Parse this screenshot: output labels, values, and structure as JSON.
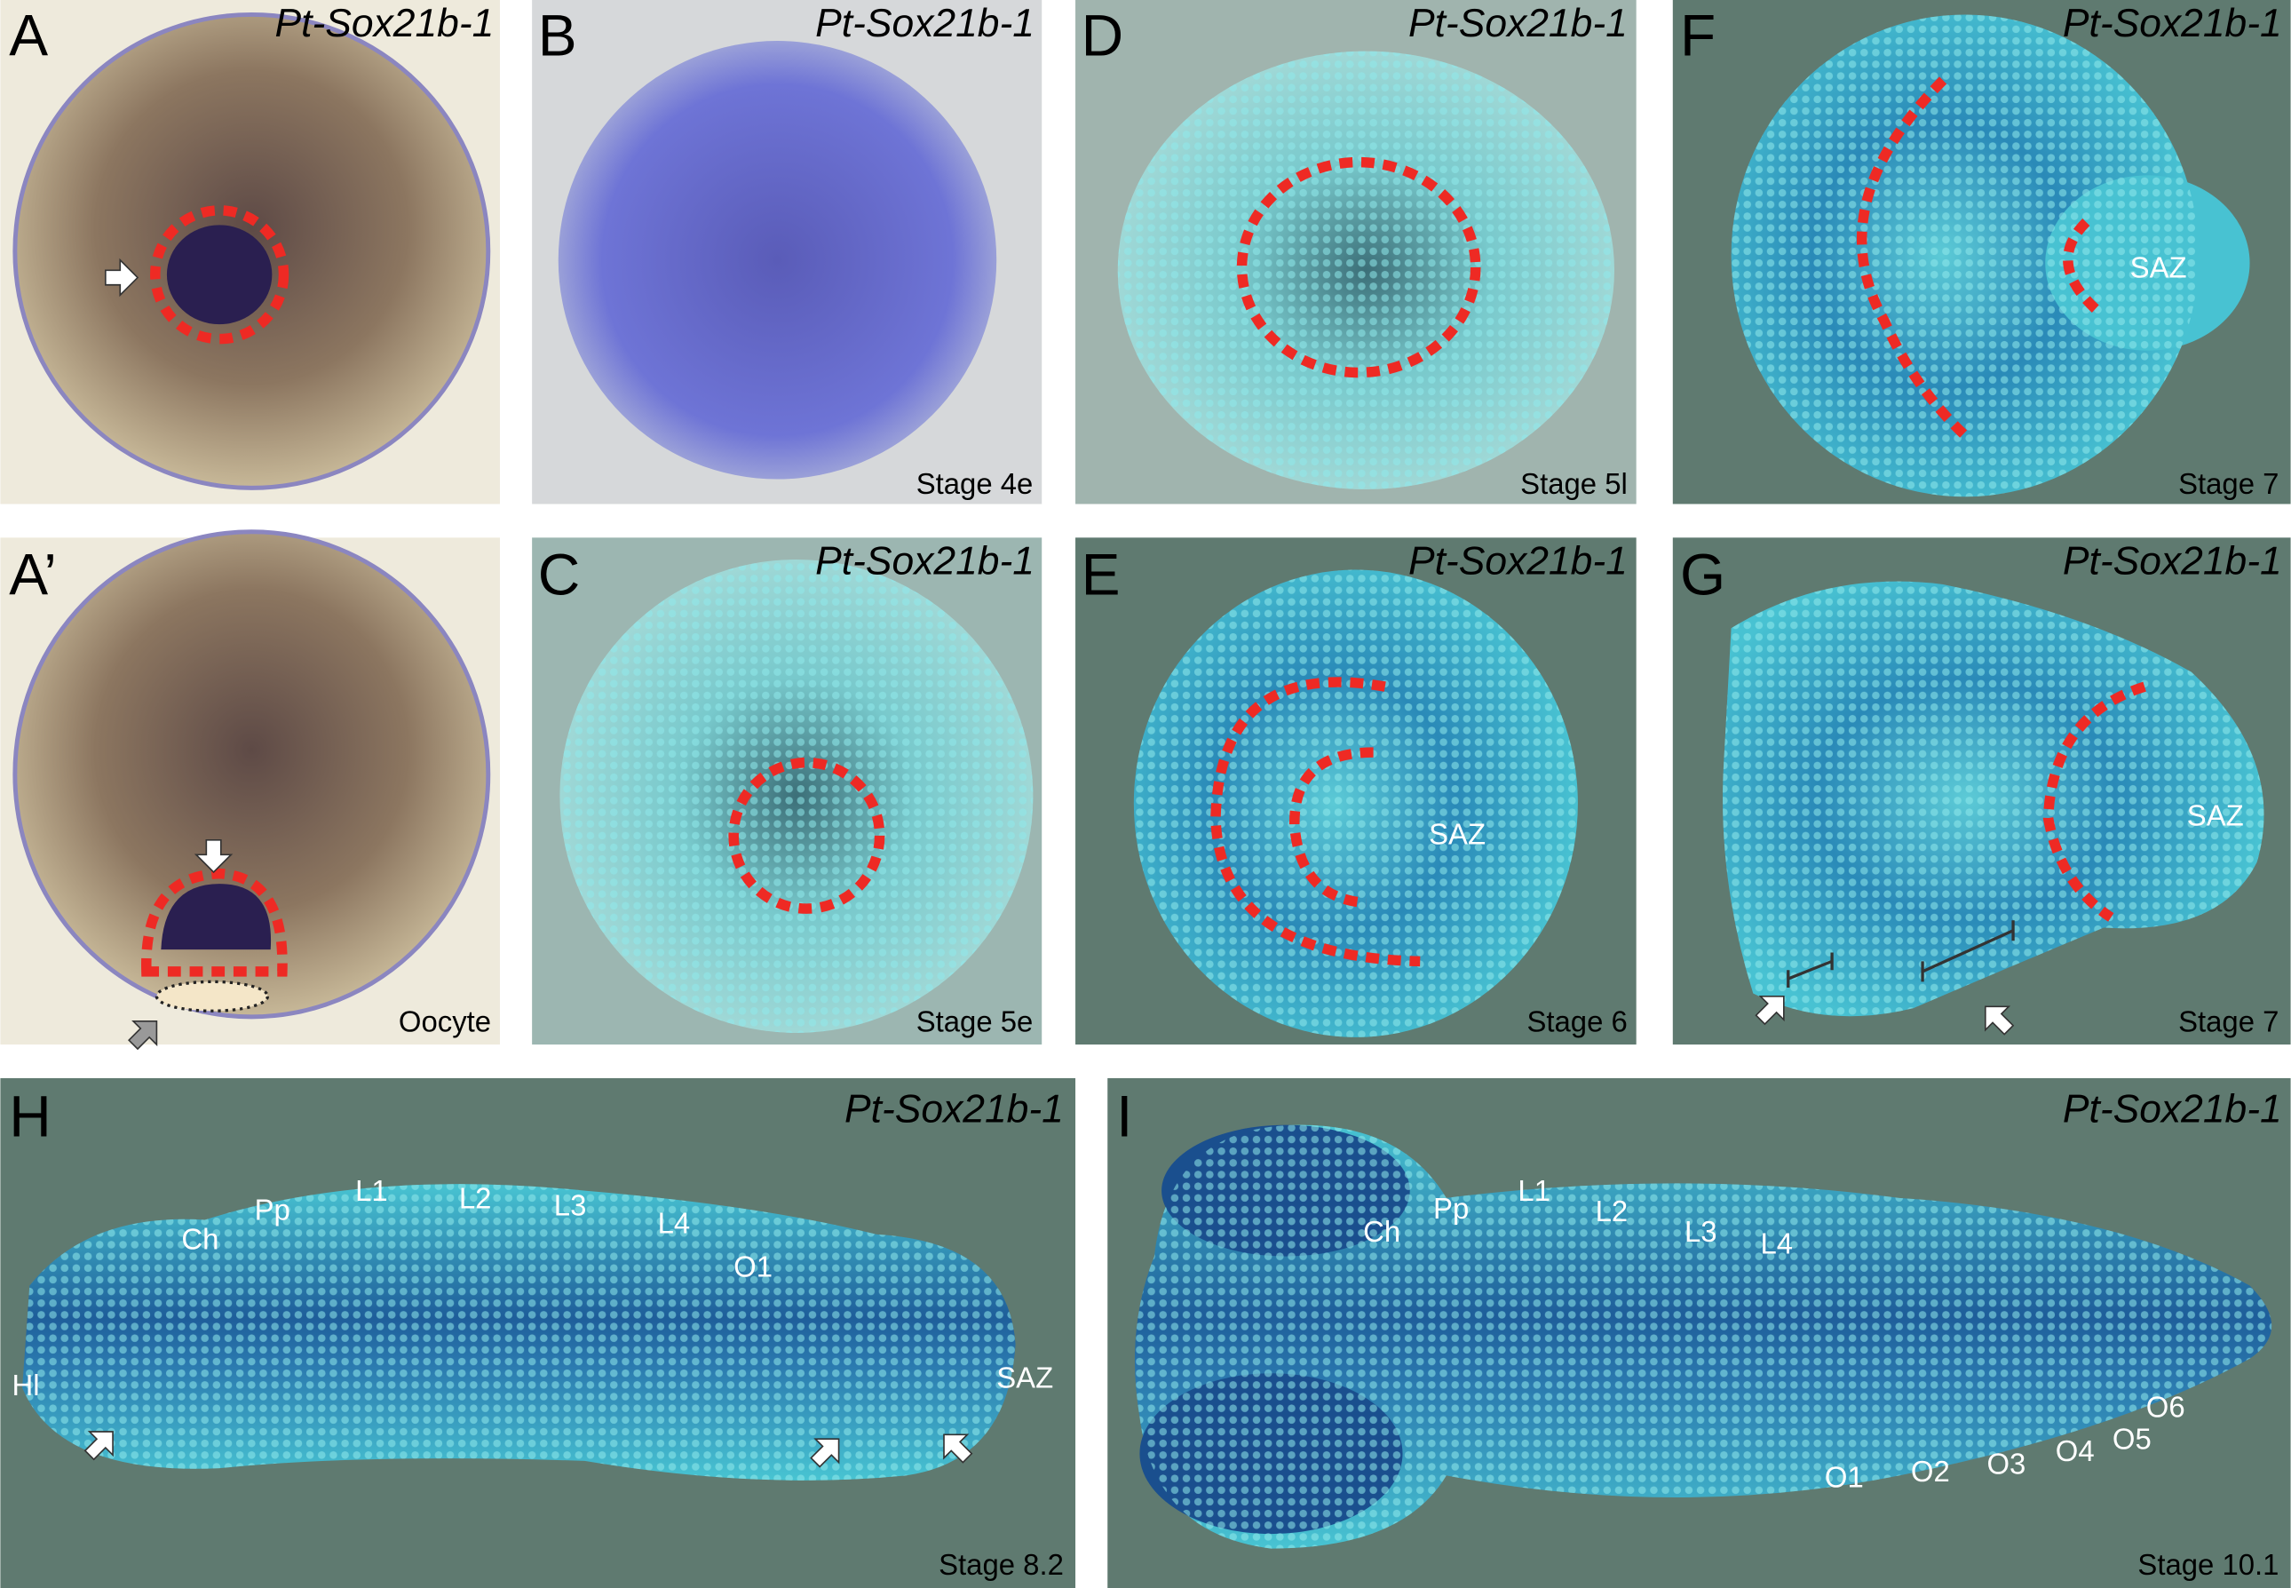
{
  "gene": "Pt-Sox21b-1",
  "panels": {
    "A": {
      "label": "A",
      "gene": "Pt-Sox21b-1"
    },
    "A_prime": {
      "label": "A’",
      "stage": "Oocyte"
    },
    "B": {
      "label": "B",
      "gene": "Pt-Sox21b-1",
      "stage": "Stage 4e"
    },
    "C": {
      "label": "C",
      "gene": "Pt-Sox21b-1",
      "stage": "Stage 5e"
    },
    "D": {
      "label": "D",
      "gene": "Pt-Sox21b-1",
      "stage": "Stage 5l"
    },
    "E": {
      "label": "E",
      "gene": "Pt-Sox21b-1",
      "stage": "Stage 6",
      "saz": "SAZ"
    },
    "F": {
      "label": "F",
      "gene": "Pt-Sox21b-1",
      "stage": "Stage 7",
      "saz": "SAZ"
    },
    "G": {
      "label": "G",
      "gene": "Pt-Sox21b-1",
      "stage": "Stage 7",
      "saz": "SAZ"
    },
    "H": {
      "label": "H",
      "gene": "Pt-Sox21b-1",
      "stage": "Stage 8.2",
      "annotations": [
        "Hl",
        "Ch",
        "Pp",
        "L1",
        "L2",
        "L3",
        "L4",
        "O1",
        "SAZ"
      ]
    },
    "I": {
      "label": "I",
      "gene": "Pt-Sox21b-1",
      "stage": "Stage 10.1",
      "annotations": [
        "Ch",
        "Pp",
        "L1",
        "L2",
        "L3",
        "L4",
        "O1",
        "O2",
        "O3",
        "O4",
        "O5",
        "O6"
      ]
    }
  },
  "colors": {
    "dotted_outline": "#ee2a24",
    "stain": "#1a3a8a",
    "nuclear_stain": "#3fc0d0"
  }
}
